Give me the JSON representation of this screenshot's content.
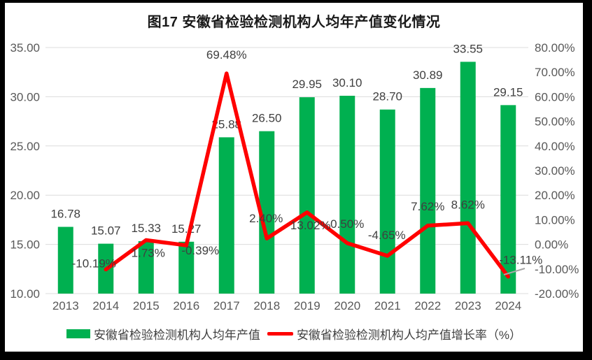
{
  "colors": {
    "bar": "#00B050",
    "line": "#FF0000",
    "grid": "#DCDCDC",
    "axis_text": "#595959",
    "label_text": "#3F3F3F",
    "leader": "#A6A6A6",
    "frame": "#000000",
    "surface": "#FFFFFF"
  },
  "chart_data": {
    "type": "combo-bar-line",
    "title": "图17 安徽省检验检测机构人均年产值变化情况",
    "categories": [
      "2013",
      "2014",
      "2015",
      "2016",
      "2017",
      "2018",
      "2019",
      "2020",
      "2021",
      "2022",
      "2023",
      "2024"
    ],
    "series": [
      {
        "name": "安徽省检验检测机构人均年产值",
        "type": "bar",
        "axis": "left",
        "color": "#00B050",
        "values": [
          16.78,
          15.07,
          15.33,
          15.27,
          25.88,
          26.5,
          29.95,
          30.1,
          28.7,
          30.89,
          33.55,
          29.15
        ],
        "data_labels": [
          "16.78",
          "15.07",
          "15.33",
          "15.27",
          "25.88",
          "26.50",
          "29.95",
          "30.10",
          "28.70",
          "30.89",
          "33.55",
          "29.15"
        ]
      },
      {
        "name": "安徽省检验检测机构人均产值增长率（%）",
        "type": "line",
        "axis": "right",
        "color": "#FF0000",
        "values": [
          null,
          -10.19,
          1.73,
          -0.39,
          69.48,
          2.4,
          13.02,
          0.5,
          -4.65,
          7.62,
          8.62,
          -13.11
        ],
        "data_labels": [
          null,
          "-10.19%",
          "1.73%",
          "-0.39%",
          "69.48%",
          "2.40%",
          "13.02%",
          "0.50%",
          "-4.65%",
          "7.62%",
          "8.62%",
          "-13.11%"
        ]
      }
    ],
    "left_axis": {
      "min": 10,
      "max": 35,
      "step": 5,
      "tick_labels": [
        "35.00",
        "30.00",
        "25.00",
        "20.00",
        "15.00",
        "10.00"
      ]
    },
    "right_axis": {
      "min": -20,
      "max": 80,
      "step": 10,
      "tick_labels": [
        "80.00%",
        "70.00%",
        "60.00%",
        "50.00%",
        "40.00%",
        "30.00%",
        "20.00%",
        "10.00%",
        "0.00%",
        "-10.00%",
        "-20.00%"
      ]
    },
    "grid": true,
    "legend_position": "bottom"
  },
  "legend": {
    "items": [
      {
        "label": "安徽省检验检测机构人均年产值",
        "swatch": "rect",
        "color": "#00B050"
      },
      {
        "label": "安徽省检验检测机构人均产值增长率（%）",
        "swatch": "line",
        "color": "#FF0000"
      }
    ]
  }
}
